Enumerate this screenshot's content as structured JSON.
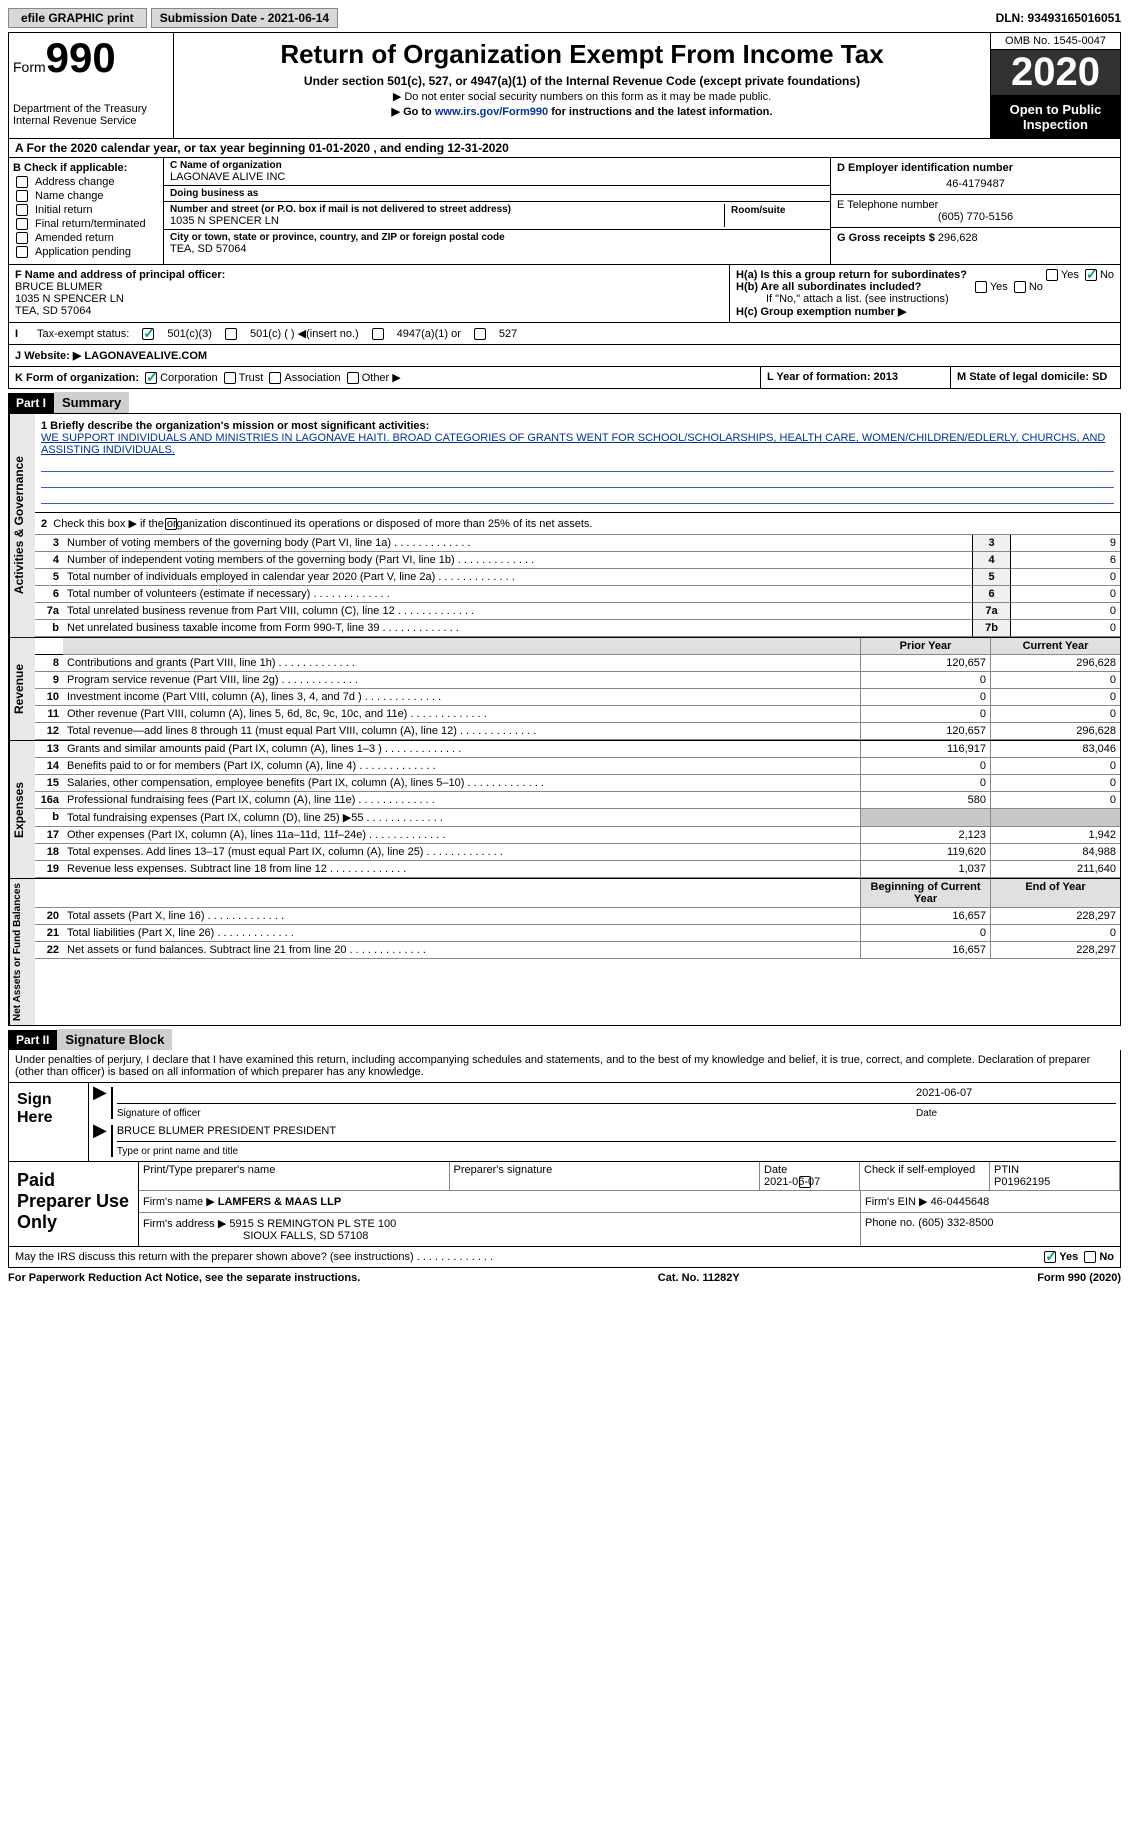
{
  "topbar": {
    "efile": "efile GRAPHIC print",
    "submission_label": "Submission Date - 2021-06-14",
    "dln": "DLN: 93493165016051"
  },
  "header": {
    "form_word": "Form",
    "form_num": "990",
    "dept": "Department of the Treasury\nInternal Revenue Service",
    "title": "Return of Organization Exempt From Income Tax",
    "sub": "Under section 501(c), 527, or 4947(a)(1) of the Internal Revenue Code (except private foundations)",
    "l1": "▶ Do not enter social security numbers on this form as it may be made public.",
    "l2_a": "▶ Go to ",
    "l2_link": "www.irs.gov/Form990",
    "l2_b": " for instructions and the latest information.",
    "omb": "OMB No. 1545-0047",
    "year": "2020",
    "open": "Open to Public Inspection"
  },
  "period": "A For the 2020 calendar year, or tax year beginning 01-01-2020    , and ending 12-31-2020",
  "boxB": {
    "label": "B Check if applicable:",
    "opts": [
      "Address change",
      "Name change",
      "Initial return",
      "Final return/terminated",
      "Amended return",
      "Application pending"
    ]
  },
  "boxC": {
    "label": "C Name of organization",
    "org": "LAGONAVE ALIVE INC",
    "dba": "Doing business as",
    "street_lbl": "Number and street (or P.O. box if mail is not delivered to street address)",
    "street": "1035 N SPENCER LN",
    "room": "Room/suite",
    "city_lbl": "City or town, state or province, country, and ZIP or foreign postal code",
    "city": "TEA, SD  57064"
  },
  "boxD": {
    "label": "D Employer identification number",
    "ein": "46-4179487"
  },
  "boxE": {
    "label": "E Telephone number",
    "phone": "(605) 770-5156"
  },
  "boxG": {
    "label": "G Gross receipts $",
    "amt": "296,628"
  },
  "boxF": {
    "label": "F  Name and address of principal officer:",
    "name": "BRUCE BLUMER",
    "addr1": "1035 N SPENCER LN",
    "addr2": "TEA, SD  57064"
  },
  "boxH": {
    "a": "H(a)  Is this a group return for subordinates?",
    "b": "H(b)  Are all subordinates included?",
    "note": "If \"No,\" attach a list. (see instructions)",
    "c": "H(c)  Group exemption number ▶"
  },
  "boxI": {
    "label": "Tax-exempt status:",
    "o1": "501(c)(3)",
    "o2": "501(c) (  ) ◀(insert no.)",
    "o3": "4947(a)(1) or",
    "o4": "527"
  },
  "boxJ": {
    "label": "Website: ▶",
    "val": " LAGONAVEALIVE.COM"
  },
  "boxK": {
    "label": "K Form of organization:",
    "o1": "Corporation",
    "o2": "Trust",
    "o3": "Association",
    "o4": "Other ▶"
  },
  "boxL": "L Year of formation: 2013",
  "boxM": "M State of legal domicile: SD",
  "partI": {
    "hdr": "Part I",
    "title": "Summary",
    "q1_lbl": "1 Briefly describe the organization's mission or most significant activities:",
    "q1": "WE SUPPORT INDIVIDUALS AND MINISTRIES IN LAGONAVE HAITI. BROAD CATEGORIES OF GRANTS WENT FOR SCHOOL/SCHOLARSHIPS, HEALTH CARE, WOMEN/CHILDREN/EDLERLY, CHURCHS, AND ASSISTING INDIVIDUALS.",
    "q2": "Check this box ▶       if the organization discontinued its operations or disposed of more than 25% of its net assets.",
    "side1": "Activities & Governance",
    "side2": "Revenue",
    "side3": "Expenses",
    "side4": "Net Assets or Fund Balances",
    "rows_gov": [
      {
        "n": "3",
        "t": "Number of voting members of the governing body (Part VI, line 1a)",
        "b": "3",
        "v": "9"
      },
      {
        "n": "4",
        "t": "Number of independent voting members of the governing body (Part VI, line 1b)",
        "b": "4",
        "v": "6"
      },
      {
        "n": "5",
        "t": "Total number of individuals employed in calendar year 2020 (Part V, line 2a)",
        "b": "5",
        "v": "0"
      },
      {
        "n": "6",
        "t": "Total number of volunteers (estimate if necessary)",
        "b": "6",
        "v": "0"
      },
      {
        "n": "7a",
        "t": "Total unrelated business revenue from Part VIII, column (C), line 12",
        "b": "7a",
        "v": "0"
      },
      {
        "n": "b",
        "t": "Net unrelated business taxable income from Form 990-T, line 39",
        "b": "7b",
        "v": "0"
      }
    ],
    "fin_hdr_py": "Prior Year",
    "fin_hdr_cy": "Current Year",
    "rows_rev": [
      {
        "n": "8",
        "t": "Contributions and grants (Part VIII, line 1h)",
        "py": "120,657",
        "cy": "296,628"
      },
      {
        "n": "9",
        "t": "Program service revenue (Part VIII, line 2g)",
        "py": "0",
        "cy": "0"
      },
      {
        "n": "10",
        "t": "Investment income (Part VIII, column (A), lines 3, 4, and 7d )",
        "py": "0",
        "cy": "0"
      },
      {
        "n": "11",
        "t": "Other revenue (Part VIII, column (A), lines 5, 6d, 8c, 9c, 10c, and 11e)",
        "py": "0",
        "cy": "0"
      },
      {
        "n": "12",
        "t": "Total revenue—add lines 8 through 11 (must equal Part VIII, column (A), line 12)",
        "py": "120,657",
        "cy": "296,628"
      }
    ],
    "rows_exp": [
      {
        "n": "13",
        "t": "Grants and similar amounts paid (Part IX, column (A), lines 1–3 )",
        "py": "116,917",
        "cy": "83,046"
      },
      {
        "n": "14",
        "t": "Benefits paid to or for members (Part IX, column (A), line 4)",
        "py": "0",
        "cy": "0"
      },
      {
        "n": "15",
        "t": "Salaries, other compensation, employee benefits (Part IX, column (A), lines 5–10)",
        "py": "0",
        "cy": "0"
      },
      {
        "n": "16a",
        "t": "Professional fundraising fees (Part IX, column (A), line 11e)",
        "py": "580",
        "cy": "0"
      },
      {
        "n": "b",
        "t": "Total fundraising expenses (Part IX, column (D), line 25) ▶55",
        "py": "",
        "cy": "",
        "shade": true
      },
      {
        "n": "17",
        "t": "Other expenses (Part IX, column (A), lines 11a–11d, 11f–24e)",
        "py": "2,123",
        "cy": "1,942"
      },
      {
        "n": "18",
        "t": "Total expenses. Add lines 13–17 (must equal Part IX, column (A), line 25)",
        "py": "119,620",
        "cy": "84,988"
      },
      {
        "n": "19",
        "t": "Revenue less expenses. Subtract line 18 from line 12",
        "py": "1,037",
        "cy": "211,640"
      }
    ],
    "na_hdr_b": "Beginning of Current Year",
    "na_hdr_e": "End of Year",
    "rows_na": [
      {
        "n": "20",
        "t": "Total assets (Part X, line 16)",
        "py": "16,657",
        "cy": "228,297"
      },
      {
        "n": "21",
        "t": "Total liabilities (Part X, line 26)",
        "py": "0",
        "cy": "0"
      },
      {
        "n": "22",
        "t": "Net assets or fund balances. Subtract line 21 from line 20",
        "py": "16,657",
        "cy": "228,297"
      }
    ]
  },
  "partII": {
    "hdr": "Part II",
    "title": "Signature Block",
    "decl": "Under penalties of perjury, I declare that I have examined this return, including accompanying schedules and statements, and to the best of my knowledge and belief, it is true, correct, and complete. Declaration of preparer (other than officer) is based on all information of which preparer has any knowledge.",
    "sign_here": "Sign Here",
    "sig_of": "Signature of officer",
    "date": "Date",
    "sig_date": "2021-06-07",
    "officer": "BRUCE BLUMER PRESIDENT PRESIDENT",
    "type_name": "Type or print name and title",
    "paid": "Paid Preparer Use Only",
    "p_h1": "Print/Type preparer's name",
    "p_h2": "Preparer's signature",
    "p_h3": "Date",
    "p_date": "2021-06-07",
    "p_h4": "Check       if self-employed",
    "p_h5": "PTIN",
    "ptin": "P01962195",
    "firm_name_l": "Firm's name     ▶",
    "firm_name": "LAMFERS & MAAS LLP",
    "firm_ein_l": "Firm's EIN ▶",
    "firm_ein": "46-0445648",
    "firm_addr_l": "Firm's address ▶",
    "firm_addr1": "5915 S REMINGTON PL STE 100",
    "firm_addr2": "SIOUX FALLS, SD  57108",
    "phone_l": "Phone no.",
    "phone": "(605) 332-8500",
    "discuss": "May the IRS discuss this return with the preparer shown above? (see instructions)"
  },
  "footer": {
    "l": "For Paperwork Reduction Act Notice, see the separate instructions.",
    "c": "Cat. No. 11282Y",
    "r": "Form 990 (2020)"
  },
  "yn": {
    "yes": "Yes",
    "no": "No"
  }
}
